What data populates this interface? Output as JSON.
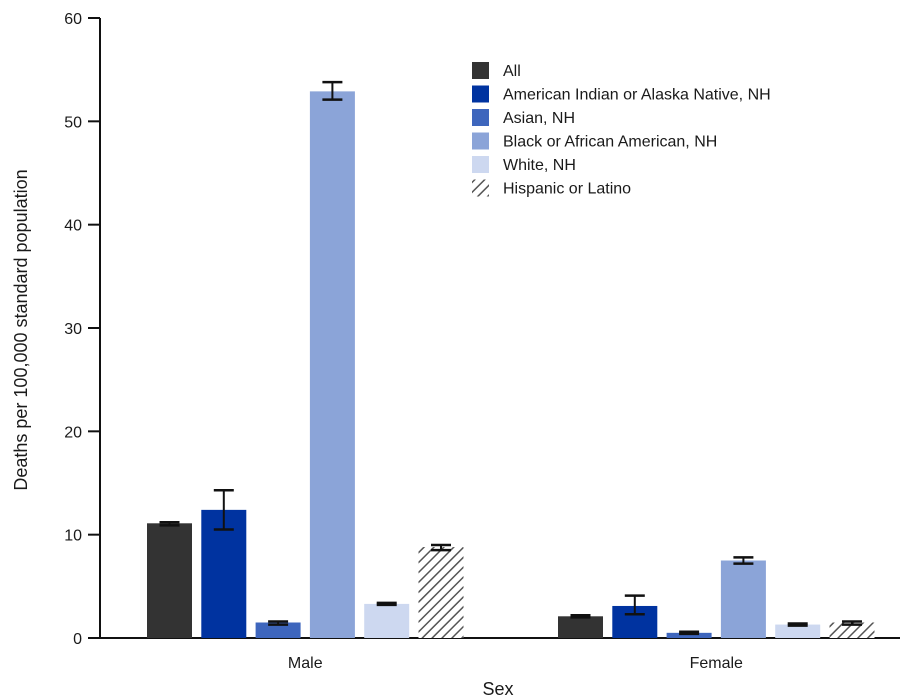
{
  "chart_data": {
    "type": "bar",
    "categories": [
      "Male",
      "Female"
    ],
    "series": [
      {
        "name": "All",
        "values": [
          11.1,
          2.1
        ],
        "ci_low": [
          10.9,
          2.0
        ],
        "ci_high": [
          11.2,
          2.2
        ],
        "color": "#333333",
        "pattern": "solid"
      },
      {
        "name": "American Indian or Alaska Native, NH",
        "values": [
          12.4,
          3.1
        ],
        "ci_low": [
          10.5,
          2.3
        ],
        "ci_high": [
          14.3,
          4.1
        ],
        "color": "#0033a0",
        "pattern": "solid"
      },
      {
        "name": "Asian, NH",
        "values": [
          1.5,
          0.5
        ],
        "ci_low": [
          1.3,
          0.4
        ],
        "ci_high": [
          1.6,
          0.6
        ],
        "color": "#3e66bd",
        "pattern": "solid"
      },
      {
        "name": "Black or African American, NH",
        "values": [
          52.9,
          7.5
        ],
        "ci_low": [
          52.1,
          7.2
        ],
        "ci_high": [
          53.8,
          7.8
        ],
        "color": "#8ba4d8",
        "pattern": "solid"
      },
      {
        "name": "White, NH",
        "values": [
          3.3,
          1.3
        ],
        "ci_low": [
          3.2,
          1.2
        ],
        "ci_high": [
          3.4,
          1.4
        ],
        "color": "#cdd8f0",
        "pattern": "solid"
      },
      {
        "name": "Hispanic or Latino",
        "values": [
          8.8,
          1.5
        ],
        "ci_low": [
          8.5,
          1.3
        ],
        "ci_high": [
          9.0,
          1.6
        ],
        "color": "#555555",
        "pattern": "hatch"
      }
    ],
    "ylabel": "Deaths per 100,000 standard population",
    "xlabel": "Sex",
    "ylim": [
      0,
      60
    ],
    "yticks": [
      "0",
      "10",
      "20",
      "30",
      "40",
      "50",
      "60"
    ],
    "grid": false,
    "legend_position": "top-right"
  }
}
